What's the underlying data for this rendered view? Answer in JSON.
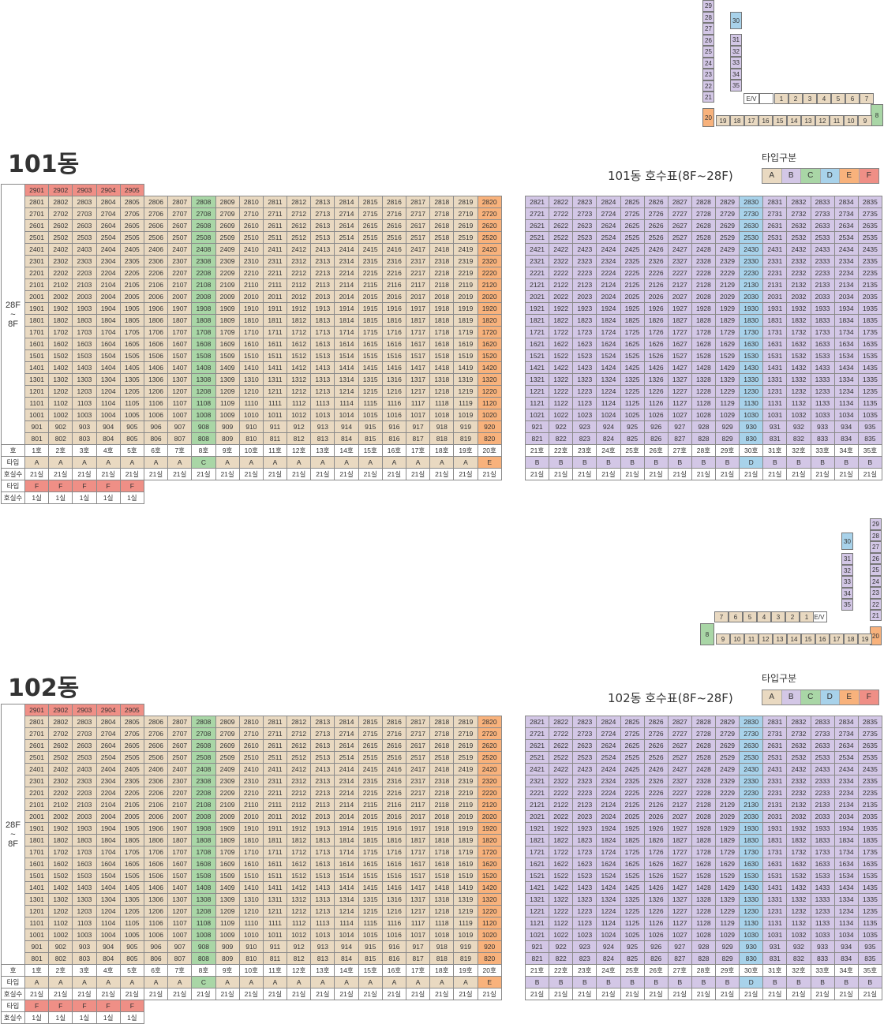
{
  "buildings": [
    {
      "title": "101동",
      "subtitle": "101동 호수표(8F~28F)",
      "legend_title": "타입구분"
    },
    {
      "title": "102동",
      "subtitle": "102동 호수표(8F~28F)",
      "legend_title": "타입구분"
    }
  ],
  "legend": [
    "A",
    "B",
    "C",
    "D",
    "E",
    "F"
  ],
  "colors": {
    "A": "#e9d9c1",
    "B": "#d3c7e6",
    "C": "#a9d6a6",
    "D": "#a8d2ea",
    "E": "#f8b27c",
    "F": "#ef8f86"
  },
  "floor_range_top": "28F",
  "floor_range_mid": "~",
  "floor_range_bottom": "8F",
  "top_floor_units": [
    "2901",
    "2902",
    "2903",
    "2904",
    "2905"
  ],
  "floors": [
    28,
    27,
    26,
    25,
    24,
    23,
    22,
    21,
    20,
    19,
    18,
    17,
    16,
    15,
    14,
    13,
    12,
    11,
    10,
    9,
    8
  ],
  "units_per_floor": 35,
  "left_types": [
    "A",
    "A",
    "A",
    "A",
    "A",
    "A",
    "A",
    "C",
    "A",
    "A",
    "A",
    "A",
    "A",
    "A",
    "A",
    "A",
    "A",
    "A",
    "A",
    "E"
  ],
  "right_types": [
    "B",
    "B",
    "B",
    "B",
    "B",
    "B",
    "B",
    "B",
    "B",
    "D",
    "B",
    "B",
    "B",
    "B",
    "B"
  ],
  "row_labels": {
    "ho": "호",
    "type": "타입",
    "count": "호실수"
  },
  "count_value": "21실",
  "f_types": [
    "F",
    "F",
    "F",
    "F",
    "F"
  ],
  "f_count": "1실",
  "ho_suffix": "호",
  "plan": {
    "ev": "E/V",
    "nums": [
      "1",
      "2",
      "3",
      "4",
      "5",
      "6",
      "7",
      "8",
      "9",
      "10",
      "11",
      "12",
      "13",
      "14",
      "15",
      "16",
      "17",
      "18",
      "19",
      "20",
      "21",
      "22",
      "23",
      "24",
      "25",
      "26",
      "27",
      "28",
      "29",
      "30",
      "31",
      "32",
      "33",
      "34",
      "35"
    ]
  }
}
